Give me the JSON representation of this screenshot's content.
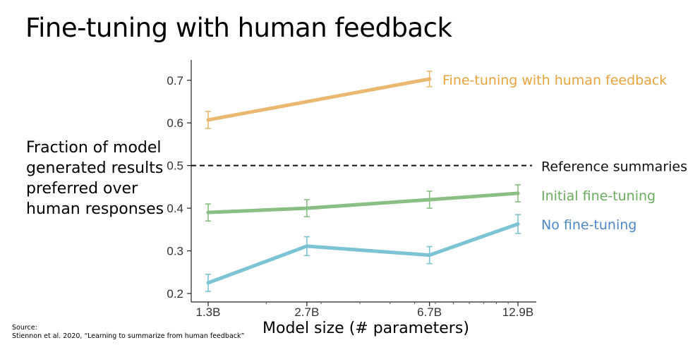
{
  "title": "Fine-tuning with human feedback",
  "ylabel_lines": [
    "Fraction of model",
    "generated results",
    "preferred over",
    "human responses"
  ],
  "xlabel": "Model size (# parameters)",
  "source": {
    "line1": "Source:",
    "line2": "Stiennon et al. 2020, “Learning to summarize from human feedback”"
  },
  "chart_data": {
    "type": "line",
    "x_scale": "log",
    "categories": [
      "1.3B",
      "2.7B",
      "6.7B",
      "12.9B"
    ],
    "x": [
      1.3,
      2.7,
      6.7,
      12.9
    ],
    "ylim": [
      0.18,
      0.75
    ],
    "yticks": [
      "0.2",
      "0.3",
      "0.4",
      "0.5",
      "0.6",
      "0.7"
    ],
    "series": [
      {
        "name": "Fine-tuning with human feedback",
        "color": "#eab870",
        "label_color": "#e8a33d",
        "x": [
          1.3,
          6.7
        ],
        "values": [
          0.607,
          0.703
        ],
        "errors": [
          0.02,
          0.018
        ]
      },
      {
        "name": "Initial fine-tuning",
        "color": "#8abf84",
        "label_color": "#6aab5e",
        "x": [
          1.3,
          2.7,
          6.7,
          12.9
        ],
        "values": [
          0.39,
          0.4,
          0.42,
          0.435
        ],
        "errors": [
          0.02,
          0.02,
          0.02,
          0.02
        ]
      },
      {
        "name": "No fine-tuning",
        "color": "#7cc3d4",
        "label_color": "#4f86c6",
        "x": [
          1.3,
          2.7,
          6.7,
          12.9
        ],
        "values": [
          0.225,
          0.311,
          0.29,
          0.363
        ],
        "errors": [
          0.02,
          0.022,
          0.02,
          0.022
        ]
      }
    ],
    "reference": {
      "name": "Reference summaries",
      "value": 0.5,
      "color": "#111111"
    }
  }
}
